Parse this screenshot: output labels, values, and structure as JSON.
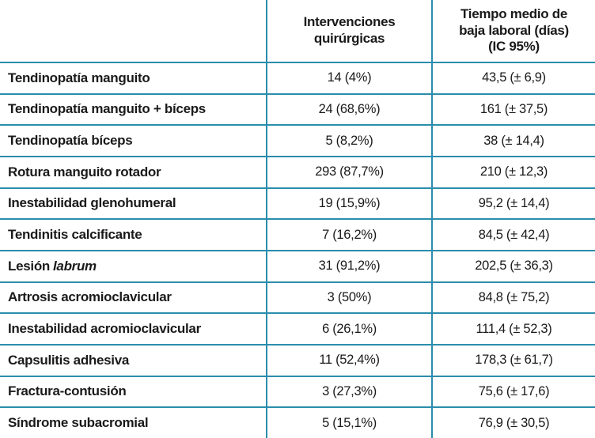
{
  "table": {
    "border_color": "#2b8dac",
    "header": {
      "col2_lines": [
        "Intervenciones",
        "quirúrgicas"
      ],
      "col3_lines": [
        "Tiempo medio de",
        "baja laboral (días)",
        "(IC 95%)"
      ]
    },
    "rows": [
      {
        "label": "Tendinopatía manguito",
        "interventions": "14 (4%)",
        "time": "43,5 (± 6,9)"
      },
      {
        "label": "Tendinopatía manguito + bíceps",
        "interventions": "24 (68,6%)",
        "time": "161 (± 37,5)"
      },
      {
        "label": "Tendinopatía bíceps",
        "interventions": "5 (8,2%)",
        "time": "38 (± 14,4)"
      },
      {
        "label": "Rotura manguito rotador",
        "interventions": "293 (87,7%)",
        "time": "210 (± 12,3)"
      },
      {
        "label": "Inestabilidad glenohumeral",
        "interventions": "19 (15,9%)",
        "time": "95,2 (± 14,4)"
      },
      {
        "label": "Tendinitis calcificante",
        "interventions": "7 (16,2%)",
        "time": "84,5 (± 42,4)"
      },
      {
        "label": "Lesión",
        "label_italic": "labrum",
        "interventions": "31 (91,2%)",
        "time": "202,5 (± 36,3)"
      },
      {
        "label": "Artrosis acromioclavicular",
        "interventions": "3 (50%)",
        "time": "84,8 (± 75,2)"
      },
      {
        "label": "Inestabilidad acromioclavicular",
        "interventions": "6 (26,1%)",
        "time": "111,4 (± 52,3)"
      },
      {
        "label": "Capsulitis adhesiva",
        "interventions": "11 (52,4%)",
        "time": "178,3 (± 61,7)"
      },
      {
        "label": "Fractura-contusión",
        "interventions": "3 (27,3%)",
        "time": "75,6 (± 17,6)"
      },
      {
        "label": "Síndrome subacromial",
        "interventions": "5 (15,1%)",
        "time": "76,9 (± 30,5)"
      }
    ]
  }
}
